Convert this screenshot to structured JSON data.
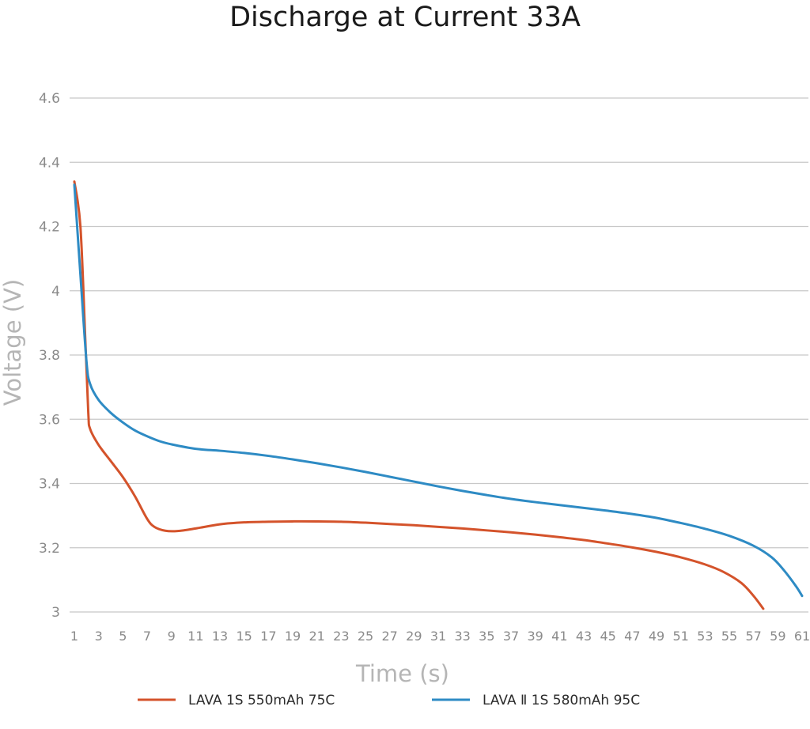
{
  "chart_data": {
    "type": "line",
    "title": "Discharge at Current 33A",
    "xlabel": "Time (s)",
    "ylabel": "Voltage (V)",
    "ylim": [
      3,
      4.6
    ],
    "xlim": [
      1,
      61
    ],
    "y_ticks": [
      "3",
      "3.2",
      "3.4",
      "3.6",
      "3.8",
      "4",
      "4.2",
      "4.4",
      "4.6"
    ],
    "x_ticks": [
      "1",
      "3",
      "5",
      "7",
      "9",
      "11",
      "13",
      "15",
      "17",
      "19",
      "21",
      "23",
      "25",
      "27",
      "29",
      "31",
      "33",
      "35",
      "37",
      "39",
      "41",
      "43",
      "45",
      "47",
      "49",
      "51",
      "53",
      "55",
      "57",
      "59",
      "61"
    ],
    "grid": true,
    "legend_position": "bottom",
    "series": [
      {
        "name": "LAVA 1S 550mAh 75C",
        "color": "#D4532B",
        "points": [
          [
            1,
            4.34
          ],
          [
            1.5,
            4.2
          ],
          [
            1.9,
            3.85
          ],
          [
            2.15,
            3.62
          ],
          [
            2.3,
            3.57
          ],
          [
            3,
            3.52
          ],
          [
            4,
            3.47
          ],
          [
            5,
            3.42
          ],
          [
            6,
            3.36
          ],
          [
            7,
            3.29
          ],
          [
            7.6,
            3.265
          ],
          [
            8.5,
            3.253
          ],
          [
            9.5,
            3.252
          ],
          [
            11,
            3.26
          ],
          [
            13,
            3.273
          ],
          [
            15,
            3.279
          ],
          [
            17,
            3.281
          ],
          [
            19,
            3.282
          ],
          [
            21,
            3.282
          ],
          [
            23,
            3.281
          ],
          [
            25,
            3.278
          ],
          [
            27,
            3.274
          ],
          [
            29,
            3.27
          ],
          [
            31,
            3.265
          ],
          [
            33,
            3.26
          ],
          [
            35,
            3.254
          ],
          [
            37,
            3.248
          ],
          [
            39,
            3.241
          ],
          [
            41,
            3.233
          ],
          [
            43,
            3.224
          ],
          [
            45,
            3.213
          ],
          [
            47,
            3.201
          ],
          [
            49,
            3.187
          ],
          [
            51,
            3.17
          ],
          [
            53,
            3.148
          ],
          [
            54.5,
            3.125
          ],
          [
            56,
            3.09
          ],
          [
            57,
            3.05
          ],
          [
            57.8,
            3.01
          ]
        ]
      },
      {
        "name": "LAVA Ⅱ 1S 580mAh 95C",
        "color": "#2E8BC4",
        "points": [
          [
            1,
            4.33
          ],
          [
            1.5,
            4.05
          ],
          [
            2,
            3.78
          ],
          [
            2.3,
            3.71
          ],
          [
            3,
            3.66
          ],
          [
            4,
            3.62
          ],
          [
            5,
            3.59
          ],
          [
            6,
            3.565
          ],
          [
            7,
            3.547
          ],
          [
            8,
            3.532
          ],
          [
            9,
            3.522
          ],
          [
            11,
            3.508
          ],
          [
            13,
            3.502
          ],
          [
            15,
            3.495
          ],
          [
            17,
            3.486
          ],
          [
            19,
            3.475
          ],
          [
            21,
            3.463
          ],
          [
            23,
            3.45
          ],
          [
            25,
            3.436
          ],
          [
            27,
            3.421
          ],
          [
            29,
            3.406
          ],
          [
            31,
            3.391
          ],
          [
            33,
            3.377
          ],
          [
            35,
            3.364
          ],
          [
            37,
            3.352
          ],
          [
            39,
            3.342
          ],
          [
            41,
            3.333
          ],
          [
            43,
            3.324
          ],
          [
            45,
            3.315
          ],
          [
            47,
            3.305
          ],
          [
            49,
            3.293
          ],
          [
            51,
            3.277
          ],
          [
            53,
            3.259
          ],
          [
            55,
            3.237
          ],
          [
            57,
            3.206
          ],
          [
            58.5,
            3.17
          ],
          [
            59.5,
            3.13
          ],
          [
            60.5,
            3.08
          ],
          [
            61,
            3.05
          ]
        ]
      }
    ]
  }
}
